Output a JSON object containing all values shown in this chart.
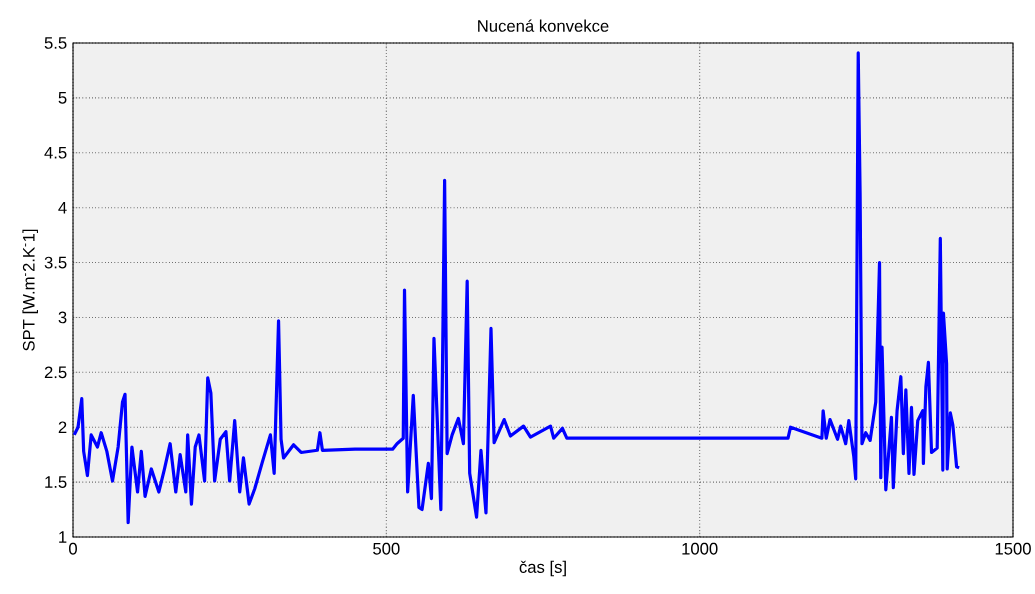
{
  "chart_data": {
    "type": "line",
    "title": "Nucená konvekce",
    "xlabel": "čas [s]",
    "ylabel": "SPT [W.m$^{-}$2.K$^{-}$1]",
    "color": "#0000ff",
    "line_style": "solid",
    "grid": true,
    "xlim": [
      0,
      1500
    ],
    "ylim": [
      1,
      5.5
    ],
    "xticks": [
      0,
      500,
      1000,
      1500
    ],
    "yticks": [
      1,
      1.5,
      2,
      2.5,
      3,
      3.5,
      4,
      4.5,
      5,
      5.5
    ],
    "x": [
      2,
      8,
      14,
      17,
      23,
      29,
      39,
      45,
      54,
      63,
      72,
      79,
      83,
      88,
      94,
      103,
      109,
      115,
      125,
      137,
      146,
      155,
      164,
      171,
      180,
      183,
      189,
      195,
      201,
      210,
      215,
      220,
      226,
      235,
      244,
      250,
      258,
      266,
      272,
      281,
      290,
      302,
      315,
      321,
      328,
      332,
      336,
      352,
      364,
      390,
      394,
      398,
      450,
      510,
      517,
      527,
      529,
      534,
      543,
      552,
      557,
      567,
      572,
      576,
      587,
      593,
      597,
      605,
      615,
      623,
      629,
      633,
      644,
      651,
      659,
      667,
      672,
      688,
      698,
      719,
      730,
      762,
      767,
      781,
      788,
      900,
      1141,
      1145,
      1195,
      1197,
      1202,
      1208,
      1220,
      1225,
      1233,
      1238,
      1246,
      1249,
      1253,
      1256,
      1259,
      1265,
      1272,
      1281,
      1287,
      1289,
      1291,
      1297,
      1306,
      1309,
      1315,
      1321,
      1325,
      1329,
      1334,
      1338,
      1342,
      1348,
      1356,
      1357,
      1361,
      1365,
      1370,
      1379,
      1384,
      1388,
      1389,
      1394,
      1395,
      1400,
      1404,
      1410,
      1414
    ],
    "values": [
      1.93,
      2.0,
      2.26,
      1.78,
      1.56,
      1.93,
      1.82,
      1.95,
      1.78,
      1.51,
      1.82,
      2.23,
      2.3,
      1.13,
      1.82,
      1.41,
      1.78,
      1.37,
      1.62,
      1.41,
      1.62,
      1.85,
      1.41,
      1.75,
      1.41,
      1.93,
      1.3,
      1.82,
      1.93,
      1.51,
      2.45,
      2.31,
      1.51,
      1.89,
      1.96,
      1.51,
      2.06,
      1.41,
      1.72,
      1.3,
      1.44,
      1.68,
      1.93,
      1.58,
      2.97,
      1.89,
      1.72,
      1.84,
      1.77,
      1.79,
      1.95,
      1.79,
      1.8,
      1.8,
      1.85,
      1.9,
      3.25,
      1.41,
      2.29,
      1.27,
      1.25,
      1.67,
      1.35,
      2.81,
      1.25,
      4.25,
      1.76,
      1.93,
      2.08,
      1.85,
      3.33,
      1.58,
      1.18,
      1.79,
      1.22,
      2.9,
      1.86,
      2.07,
      1.92,
      2.01,
      1.91,
      2.01,
      1.9,
      1.99,
      1.9,
      1.9,
      1.9,
      2.0,
      1.9,
      2.15,
      1.9,
      2.07,
      1.89,
      2.01,
      1.85,
      2.06,
      1.73,
      1.53,
      5.41,
      4.13,
      1.85,
      1.95,
      1.88,
      2.23,
      3.5,
      1.54,
      2.73,
      1.43,
      2.09,
      1.45,
      2.15,
      2.46,
      1.76,
      2.34,
      1.58,
      2.18,
      1.57,
      2.06,
      2.15,
      1.67,
      2.37,
      2.59,
      1.77,
      1.81,
      3.72,
      1.61,
      3.04,
      2.58,
      1.62,
      2.13,
      2.02,
      1.64,
      1.63
    ]
  }
}
